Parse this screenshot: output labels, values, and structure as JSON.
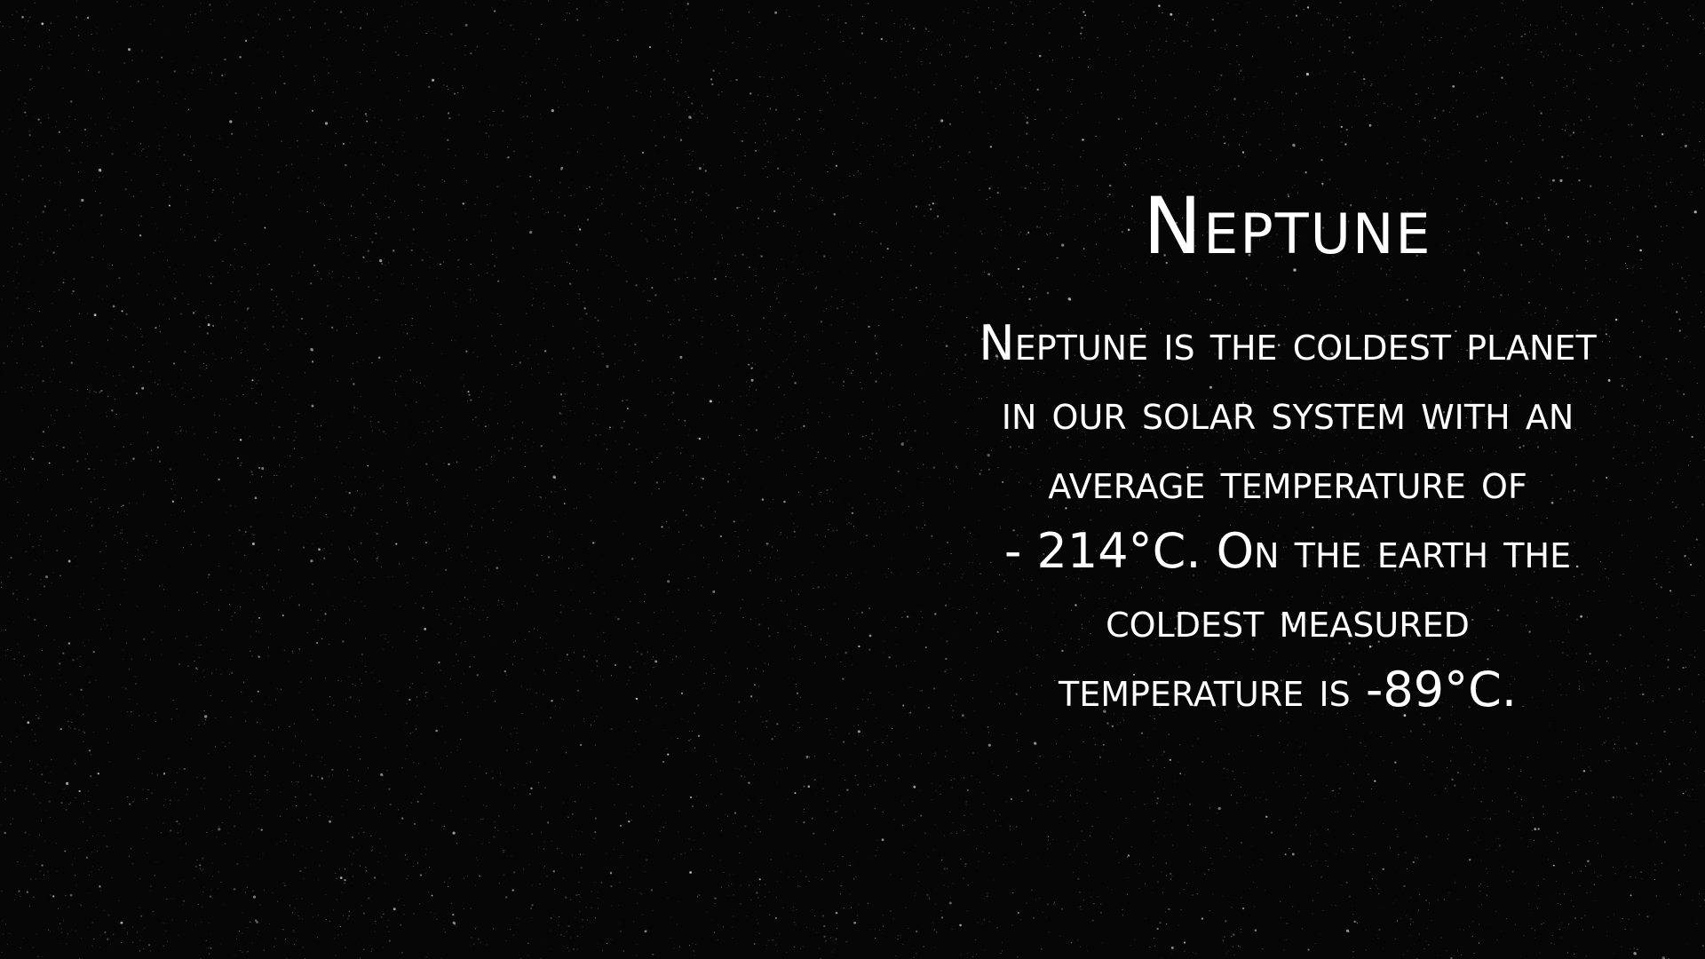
{
  "slide": {
    "title": "Neptune",
    "body_lines": [
      "Neptune is the coldest planet",
      "in our solar system with an",
      "average temperature of",
      "- 214°C. On the earth the",
      "coldest measured",
      "temperature is -89°C."
    ]
  },
  "theme": {
    "background": "#060606",
    "text_color": "#ffffff"
  }
}
